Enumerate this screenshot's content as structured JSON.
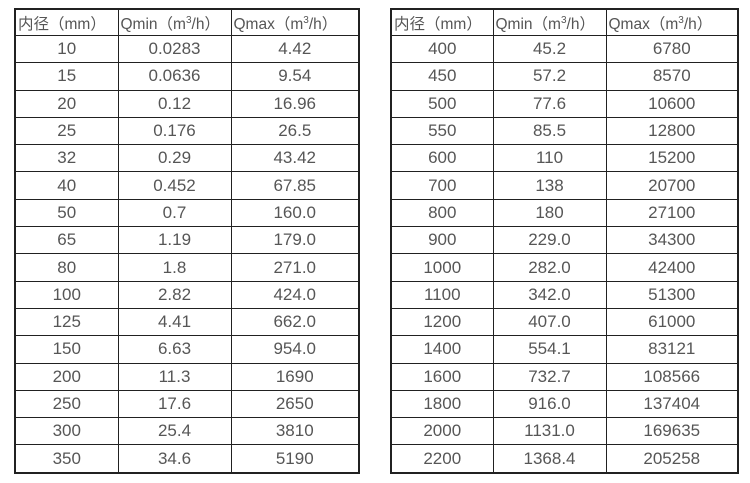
{
  "page": {
    "background": "#ffffff",
    "text_color": "#565656",
    "border_color": "#212121"
  },
  "tables": [
    {
      "name": "flow-table-small-diameters",
      "headers": [
        {
          "parts": [
            {
              "t": "内径（mm）"
            }
          ]
        },
        {
          "parts": [
            {
              "t": "Qmin（m"
            },
            {
              "t": "3",
              "sup": true
            },
            {
              "t": "/h）"
            }
          ]
        },
        {
          "parts": [
            {
              "t": "Qmax（m"
            },
            {
              "t": "3",
              "sup": true
            },
            {
              "t": "/h）"
            }
          ]
        }
      ],
      "rows": [
        [
          "10",
          "0.0283",
          "4.42"
        ],
        [
          "15",
          "0.0636",
          "9.54"
        ],
        [
          "20",
          "0.12",
          "16.96"
        ],
        [
          "25",
          "0.176",
          "26.5"
        ],
        [
          "32",
          "0.29",
          "43.42"
        ],
        [
          "40",
          "0.452",
          "67.85"
        ],
        [
          "50",
          "0.7",
          "160.0"
        ],
        [
          "65",
          "1.19",
          "179.0"
        ],
        [
          "80",
          "1.8",
          "271.0"
        ],
        [
          "100",
          "2.82",
          "424.0"
        ],
        [
          "125",
          "4.41",
          "662.0"
        ],
        [
          "150",
          "6.63",
          "954.0"
        ],
        [
          "200",
          "11.3",
          "1690"
        ],
        [
          "250",
          "17.6",
          "2650"
        ],
        [
          "300",
          "25.4",
          "3810"
        ],
        [
          "350",
          "34.6",
          "5190"
        ]
      ]
    },
    {
      "name": "flow-table-large-diameters",
      "headers": [
        {
          "parts": [
            {
              "t": "内径（mm）"
            }
          ]
        },
        {
          "parts": [
            {
              "t": "Qmin（m"
            },
            {
              "t": "3",
              "sup": true
            },
            {
              "t": "/h）"
            }
          ]
        },
        {
          "parts": [
            {
              "t": "Qmax（m"
            },
            {
              "t": "3",
              "sup": true
            },
            {
              "t": "/h）"
            }
          ]
        }
      ],
      "rows": [
        [
          "400",
          "45.2",
          "6780"
        ],
        [
          "450",
          "57.2",
          "8570"
        ],
        [
          "500",
          "77.6",
          "10600"
        ],
        [
          "550",
          "85.5",
          "12800"
        ],
        [
          "600",
          "110",
          "15200"
        ],
        [
          "700",
          "138",
          "20700"
        ],
        [
          "800",
          "180",
          "27100"
        ],
        [
          "900",
          "229.0",
          "34300"
        ],
        [
          "1000",
          "282.0",
          "42400"
        ],
        [
          "1100",
          "342.0",
          "51300"
        ],
        [
          "1200",
          "407.0",
          "61000"
        ],
        [
          "1400",
          "554.1",
          "83121"
        ],
        [
          "1600",
          "732.7",
          "108566"
        ],
        [
          "1800",
          "916.0",
          "137404"
        ],
        [
          "2000",
          "1131.0",
          "169635"
        ],
        [
          "2200",
          "1368.4",
          "205258"
        ]
      ]
    }
  ]
}
